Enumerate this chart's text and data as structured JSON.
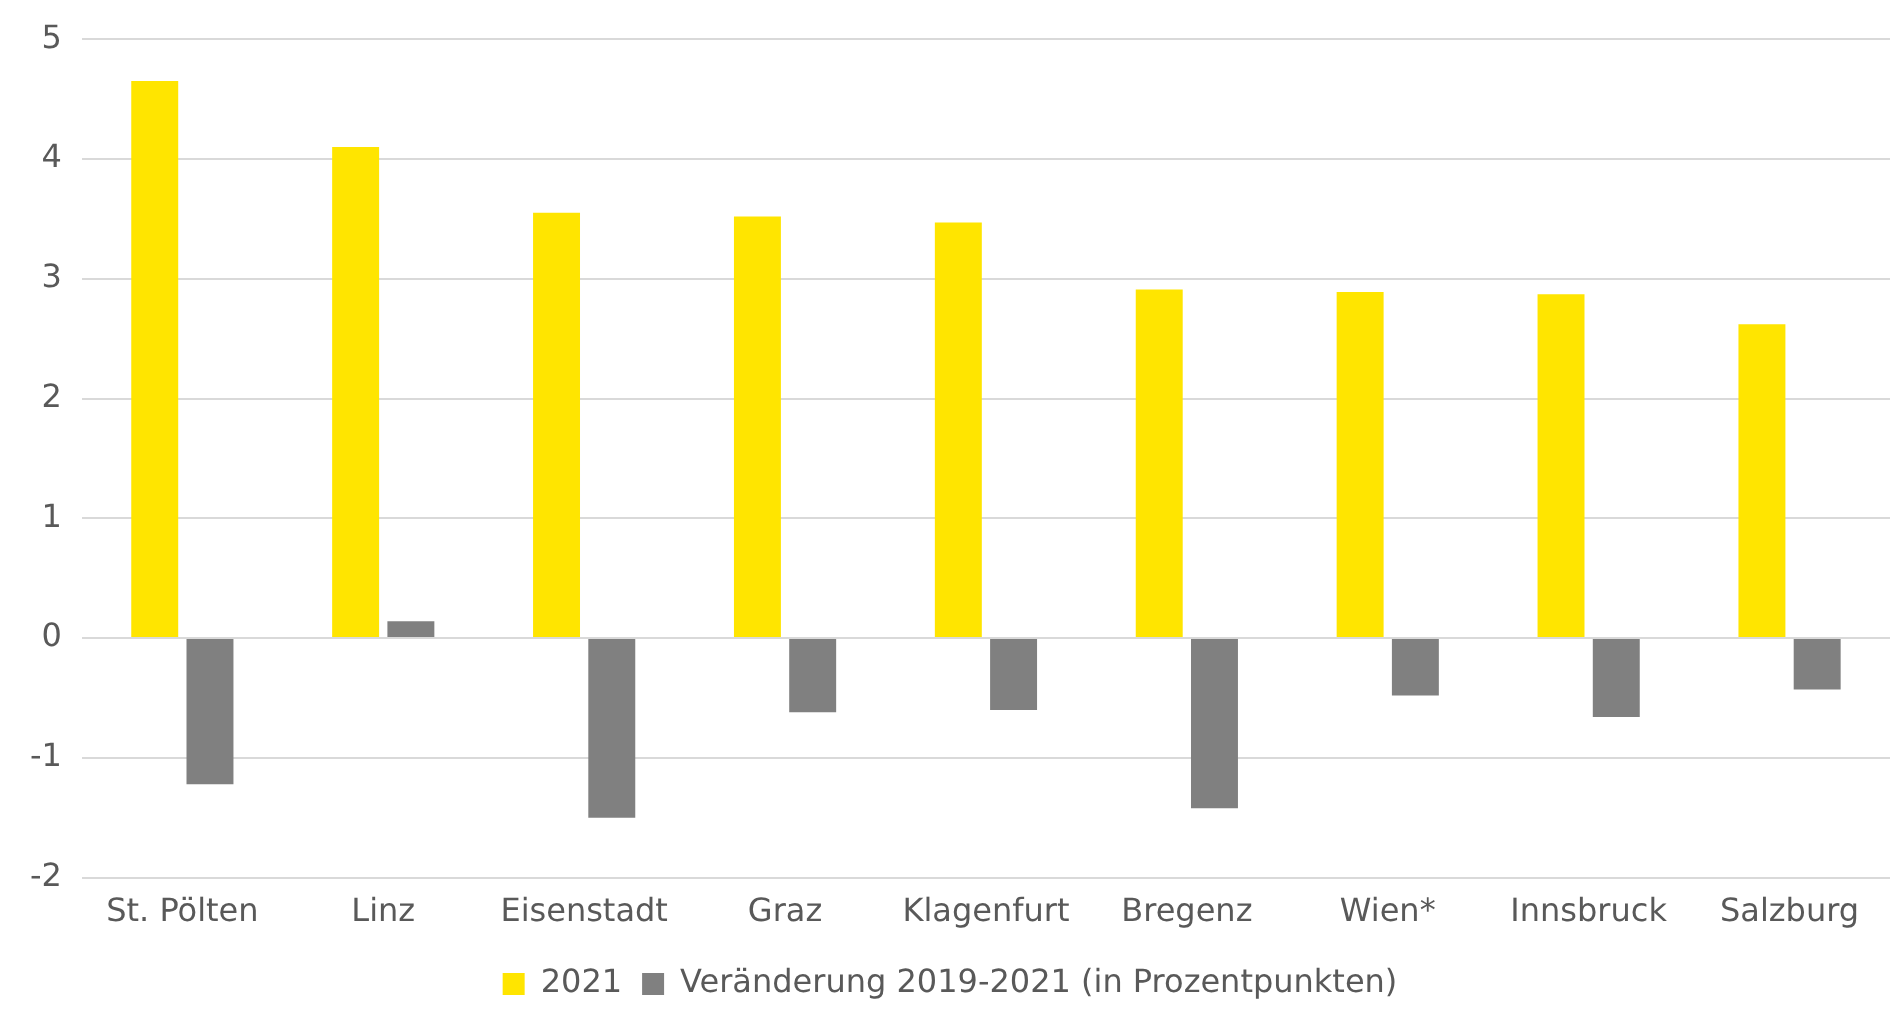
{
  "chart_data": {
    "type": "bar",
    "categories": [
      "St. Pölten",
      "Linz",
      "Eisenstadt",
      "Graz",
      "Klagenfurt",
      "Bregenz",
      "Wien*",
      "Innsbruck",
      "Salzburg"
    ],
    "series": [
      {
        "name": "2021",
        "color": "#ffe500",
        "values": [
          4.65,
          4.1,
          3.55,
          3.52,
          3.47,
          2.91,
          2.89,
          2.87,
          2.62
        ]
      },
      {
        "name": "Veränderung 2019-2021 (in Prozentpunkten)",
        "color": "#808080",
        "values": [
          -1.22,
          0.14,
          -1.5,
          -0.62,
          -0.6,
          -1.42,
          -0.48,
          -0.66,
          -0.43
        ]
      }
    ],
    "ylim": [
      -2,
      5
    ],
    "yticks": [
      -2,
      -1,
      0,
      1,
      2,
      3,
      4,
      5
    ],
    "grid": "y",
    "legend": "bottom"
  }
}
